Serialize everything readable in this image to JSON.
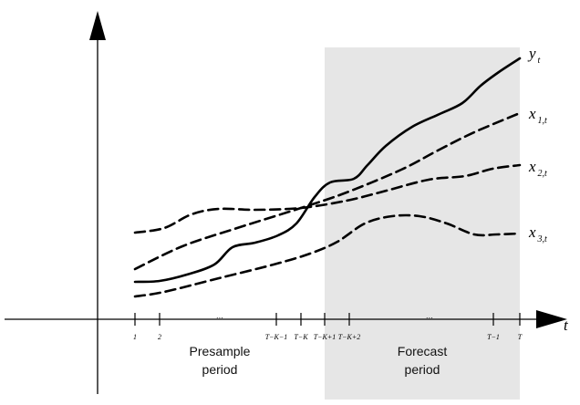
{
  "series_labels": [
    {
      "base": "y",
      "sub": "t"
    },
    {
      "base": "x",
      "sub": "1,t"
    },
    {
      "base": "x",
      "sub": "2,t"
    },
    {
      "base": "x",
      "sub": "3,t"
    }
  ],
  "axis_label": "t",
  "ticks": [
    "1",
    "2",
    "…",
    "T−K−1",
    "T−K",
    "T−K+1",
    "T−K+2",
    "…",
    "T−1",
    "T"
  ],
  "periods": {
    "presample": [
      "Presample",
      "period"
    ],
    "forecast": [
      "Forecast",
      "period"
    ]
  }
}
